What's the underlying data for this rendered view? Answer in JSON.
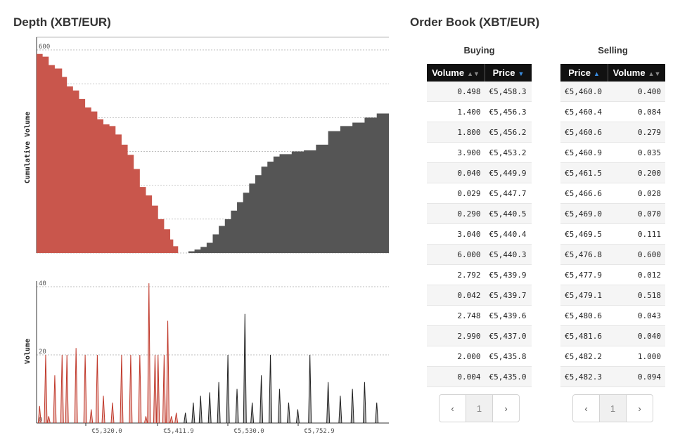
{
  "depth_title": "Depth (XBT/EUR)",
  "book_title": "Order Book (XBT/EUR)",
  "chart_data": [
    {
      "type": "area",
      "title": "",
      "xlabel": "",
      "ylabel": "Cumulative Volume",
      "ylim": [
        0,
        600
      ],
      "yticks": [
        "0",
        "100",
        "200",
        "300",
        "400",
        "500",
        "600"
      ],
      "grid": true,
      "series": [
        {
          "name": "",
          "color": "#c9564c",
          "x": [
            5223,
            5230,
            5240,
            5250,
            5262,
            5270,
            5280,
            5290,
            5300,
            5310,
            5320,
            5330,
            5340,
            5350,
            5360,
            5370,
            5380,
            5390,
            5400,
            5410,
            5420,
            5430,
            5440,
            5445,
            5453
          ],
          "values": [
            588,
            580,
            555,
            545,
            520,
            492,
            480,
            455,
            430,
            418,
            395,
            380,
            375,
            350,
            320,
            290,
            248,
            195,
            170,
            140,
            100,
            70,
            40,
            20,
            0
          ]
        },
        {
          "name": "",
          "color": "#555555",
          "x": [
            5460,
            5470,
            5480,
            5490,
            5500,
            5510,
            5520,
            5530,
            5540,
            5550,
            5560,
            5570,
            5580,
            5590,
            5600,
            5610,
            5620,
            5640,
            5660,
            5680,
            5700,
            5720,
            5740,
            5760,
            5780,
            5800
          ],
          "values": [
            0,
            5,
            10,
            18,
            30,
            55,
            80,
            100,
            125,
            150,
            178,
            205,
            230,
            255,
            270,
            285,
            292,
            300,
            303,
            320,
            360,
            375,
            385,
            400,
            412,
            420
          ]
        }
      ]
    },
    {
      "type": "line",
      "title": "",
      "xlabel": "",
      "ylabel": "Volume",
      "ylim": [
        0,
        40
      ],
      "yticks": [
        "0",
        "20",
        "40"
      ],
      "xticks": [
        "€5,320.0",
        "€5,411.9",
        "€5,530.0",
        "€5,752.9"
      ],
      "grid": true,
      "series": [
        {
          "name": "",
          "color": "#c0392b",
          "x": [
            5225,
            5235,
            5240,
            5250,
            5262,
            5270,
            5285,
            5300,
            5310,
            5320,
            5330,
            5345,
            5360,
            5375,
            5390,
            5400,
            5405,
            5415,
            5420,
            5430,
            5436,
            5442,
            5450
          ],
          "values": [
            5,
            20,
            2,
            14,
            20,
            20,
            22,
            20,
            4,
            20,
            8,
            6,
            20,
            20,
            20,
            2,
            41,
            20,
            20,
            20,
            30,
            2,
            3
          ]
        },
        {
          "name": "",
          "color": "#222222",
          "x": [
            5465,
            5478,
            5490,
            5505,
            5520,
            5535,
            5550,
            5563,
            5575,
            5590,
            5605,
            5620,
            5635,
            5650,
            5670,
            5700,
            5720,
            5740,
            5760,
            5780
          ],
          "values": [
            3,
            6,
            8,
            9,
            12,
            20,
            10,
            32,
            6,
            14,
            20,
            10,
            6,
            4,
            20,
            12,
            8,
            10,
            12,
            6
          ]
        }
      ]
    }
  ],
  "buying": {
    "title": "Buying",
    "headers": [
      "Volume",
      "Price"
    ],
    "rows": [
      [
        "0.498",
        "€5,458.3"
      ],
      [
        "1.400",
        "€5,456.3"
      ],
      [
        "1.800",
        "€5,456.2"
      ],
      [
        "3.900",
        "€5,453.2"
      ],
      [
        "0.040",
        "€5,449.9"
      ],
      [
        "0.029",
        "€5,447.7"
      ],
      [
        "0.290",
        "€5,440.5"
      ],
      [
        "3.040",
        "€5,440.4"
      ],
      [
        "6.000",
        "€5,440.3"
      ],
      [
        "2.792",
        "€5,439.9"
      ],
      [
        "0.042",
        "€5,439.7"
      ],
      [
        "2.748",
        "€5,439.6"
      ],
      [
        "2.990",
        "€5,437.0"
      ],
      [
        "2.000",
        "€5,435.8"
      ],
      [
        "0.004",
        "€5,435.0"
      ]
    ],
    "pager": {
      "prev": "‹",
      "page": "1",
      "next": "›"
    }
  },
  "selling": {
    "title": "Selling",
    "headers": [
      "Price",
      "Volume"
    ],
    "rows": [
      [
        "€5,460.0",
        "0.400"
      ],
      [
        "€5,460.4",
        "0.084"
      ],
      [
        "€5,460.6",
        "0.279"
      ],
      [
        "€5,460.9",
        "0.035"
      ],
      [
        "€5,461.5",
        "0.200"
      ],
      [
        "€5,466.6",
        "0.028"
      ],
      [
        "€5,469.0",
        "0.070"
      ],
      [
        "€5,469.5",
        "0.111"
      ],
      [
        "€5,476.8",
        "0.600"
      ],
      [
        "€5,477.9",
        "0.012"
      ],
      [
        "€5,479.1",
        "0.518"
      ],
      [
        "€5,480.6",
        "0.043"
      ],
      [
        "€5,481.6",
        "0.040"
      ],
      [
        "€5,482.2",
        "1.000"
      ],
      [
        "€5,482.3",
        "0.094"
      ]
    ],
    "pager": {
      "prev": "‹",
      "page": "1",
      "next": "›"
    }
  }
}
